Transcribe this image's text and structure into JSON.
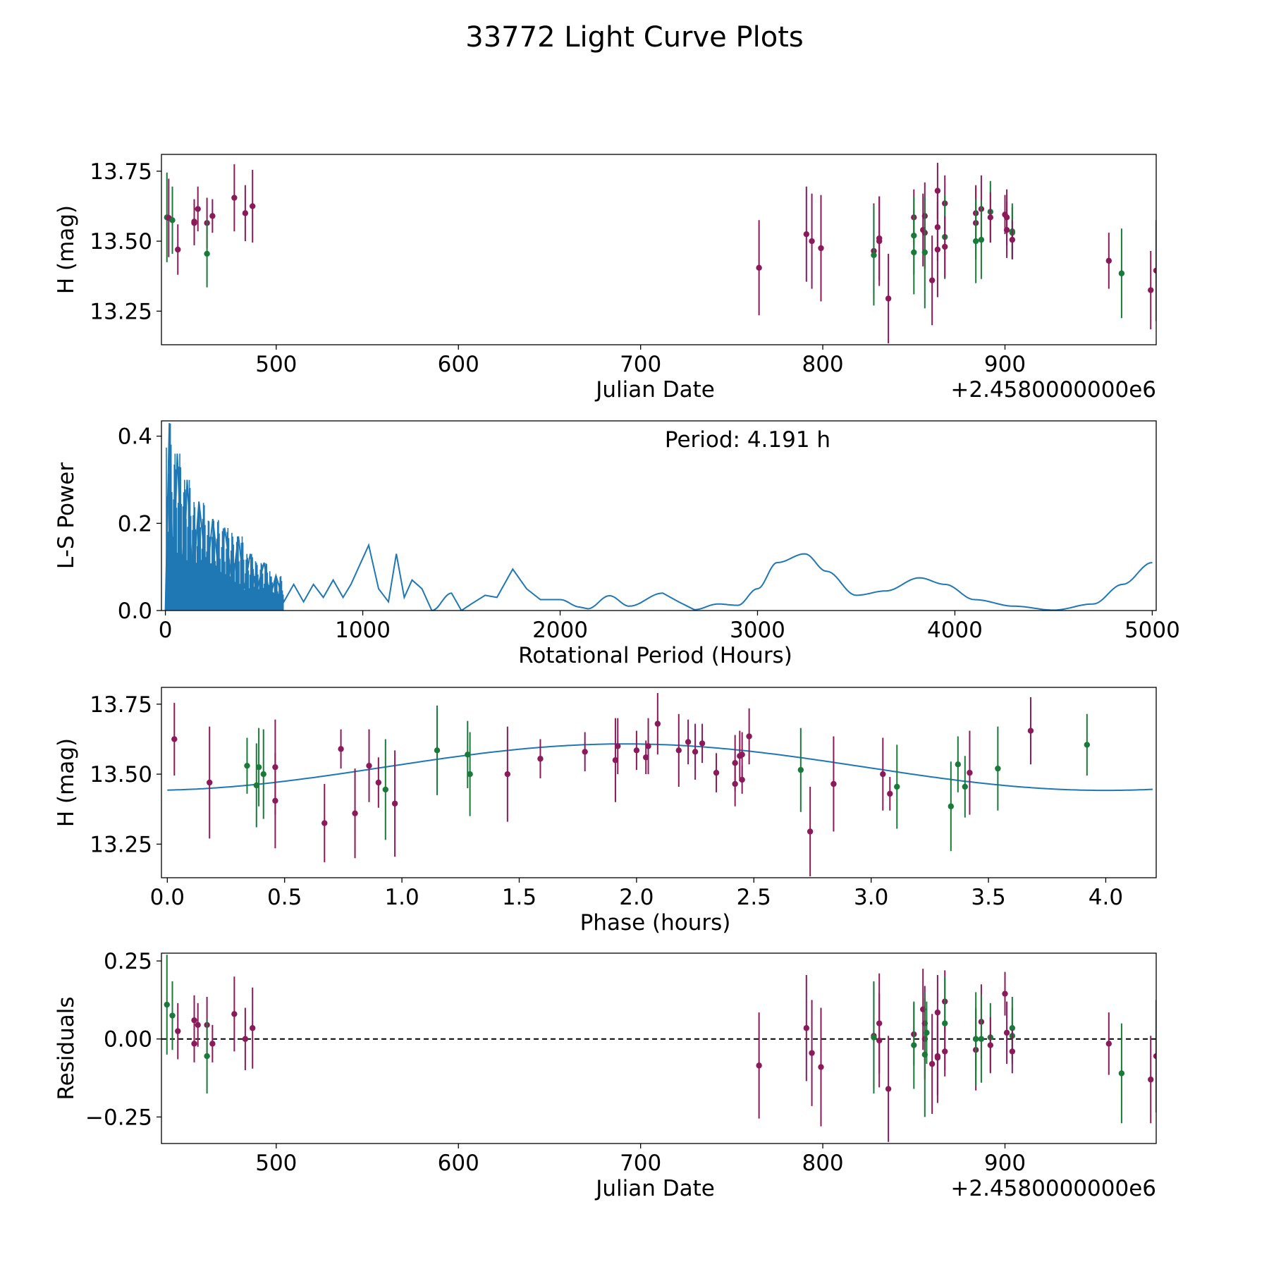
{
  "chart_data": {
    "title": "33772 Light Curve Plots",
    "colors": {
      "purple": "#8b1a5a",
      "green": "#1a7a3a",
      "blue": "#1f77b4"
    },
    "panels": [
      {
        "id": "lightcurve",
        "type": "scatter",
        "xlabel": "Julian Date",
        "ylabel": "H (mag)",
        "offset_label": "+2.4580000000e6",
        "xlim": [
          437,
          983
        ],
        "ylim": [
          13.13,
          13.81
        ],
        "xticks": [
          500,
          600,
          700,
          800,
          900
        ],
        "xtick_labels": [
          "500",
          "600",
          "700",
          "800",
          "900"
        ],
        "yticks": [
          13.25,
          13.5,
          13.75
        ],
        "ytick_labels": [
          "13.25",
          "13.50",
          "13.75"
        ]
      },
      {
        "id": "periodogram",
        "type": "line",
        "xlabel": "Rotational Period (Hours)",
        "ylabel": "L-S Power",
        "annotation": "Period: 4.191 h",
        "xlim": [
          -20,
          5020
        ],
        "ylim": [
          0,
          0.435
        ],
        "xticks": [
          0,
          1000,
          2000,
          3000,
          4000,
          5000
        ],
        "xtick_labels": [
          "0",
          "1000",
          "2000",
          "3000",
          "4000",
          "5000"
        ],
        "yticks": [
          0.0,
          0.2,
          0.4
        ],
        "ytick_labels": [
          "0.0",
          "0.2",
          "0.4"
        ],
        "peaks": [
          [
            0,
            0.0
          ],
          [
            20,
            0.43
          ],
          [
            40,
            0.05
          ],
          [
            60,
            0.36
          ],
          [
            90,
            0.04
          ],
          [
            110,
            0.3
          ],
          [
            140,
            0.06
          ],
          [
            170,
            0.25
          ],
          [
            210,
            0.08
          ],
          [
            240,
            0.21
          ],
          [
            280,
            0.05
          ],
          [
            300,
            0.19
          ],
          [
            340,
            0.06
          ],
          [
            370,
            0.17
          ],
          [
            400,
            0.05
          ],
          [
            430,
            0.13
          ],
          [
            460,
            0.04
          ],
          [
            500,
            0.11
          ],
          [
            530,
            0.03
          ],
          [
            560,
            0.08
          ],
          [
            600,
            0.02
          ],
          [
            650,
            0.06
          ],
          [
            700,
            0.02
          ],
          [
            750,
            0.06
          ],
          [
            800,
            0.03
          ],
          [
            850,
            0.07
          ],
          [
            900,
            0.03
          ],
          [
            940,
            0.06
          ],
          [
            1000,
            0.12
          ],
          [
            1030,
            0.15
          ],
          [
            1080,
            0.05
          ],
          [
            1130,
            0.02
          ],
          [
            1170,
            0.13
          ],
          [
            1210,
            0.03
          ],
          [
            1250,
            0.07
          ],
          [
            1300,
            0.05
          ],
          [
            1350,
            0.0
          ],
          [
            1450,
            0.04
          ],
          [
            1500,
            0.0
          ],
          [
            1550,
            0.015
          ],
          [
            1620,
            0.035
          ],
          [
            1680,
            0.03
          ],
          [
            1760,
            0.095
          ],
          [
            1830,
            0.05
          ],
          [
            1900,
            0.025
          ],
          [
            2000,
            0.025
          ],
          [
            2100,
            0.008
          ],
          [
            2140,
            0.004
          ],
          [
            2250,
            0.034
          ],
          [
            2350,
            0.01
          ],
          [
            2520,
            0.04
          ],
          [
            2600,
            0.02
          ],
          [
            2680,
            0.002
          ],
          [
            2800,
            0.015
          ],
          [
            2900,
            0.012
          ],
          [
            3000,
            0.05
          ],
          [
            3100,
            0.11
          ],
          [
            3240,
            0.13
          ],
          [
            3350,
            0.09
          ],
          [
            3500,
            0.035
          ],
          [
            3650,
            0.045
          ],
          [
            3820,
            0.075
          ],
          [
            3950,
            0.06
          ],
          [
            4100,
            0.025
          ],
          [
            4300,
            0.01
          ],
          [
            4500,
            0.001
          ],
          [
            4700,
            0.015
          ],
          [
            4850,
            0.06
          ],
          [
            5000,
            0.11
          ]
        ]
      },
      {
        "id": "phased",
        "type": "scatter",
        "xlabel": "Phase (hours)",
        "ylabel": "H (mag)",
        "xlim": [
          -0.025,
          4.215
        ],
        "ylim": [
          13.13,
          13.81
        ],
        "xticks": [
          0.0,
          0.5,
          1.0,
          1.5,
          2.0,
          2.5,
          3.0,
          3.5,
          4.0
        ],
        "xtick_labels": [
          "0.0",
          "0.5",
          "1.0",
          "1.5",
          "2.0",
          "2.5",
          "3.0",
          "3.5",
          "4.0"
        ],
        "yticks": [
          13.25,
          13.5,
          13.75
        ],
        "ytick_labels": [
          "13.25",
          "13.50",
          "13.75"
        ],
        "fit": {
          "mean": 13.525,
          "amplitude": 0.083,
          "peak_phase": 1.95,
          "half_period": 2.05
        }
      },
      {
        "id": "residuals",
        "type": "scatter",
        "xlabel": "Julian Date",
        "ylabel": "Residuals",
        "offset_label": "+2.4580000000e6",
        "xlim": [
          437,
          983
        ],
        "ylim": [
          -0.335,
          0.275
        ],
        "xticks": [
          500,
          600,
          700,
          800,
          900
        ],
        "xtick_labels": [
          "500",
          "600",
          "700",
          "800",
          "900"
        ],
        "yticks": [
          0.25,
          0.0,
          -0.25
        ],
        "ytick_labels": [
          "0.25",
          "0.00",
          "−0.25"
        ]
      }
    ],
    "lightcurve_points": [
      [
        440,
        13.585,
        0.16,
        "g"
      ],
      [
        441,
        13.583,
        0.14,
        "p"
      ],
      [
        443,
        13.575,
        0.12,
        "g"
      ],
      [
        446,
        13.47,
        0.09,
        "p"
      ],
      [
        455,
        13.565,
        0.08,
        "p"
      ],
      [
        455,
        13.57,
        0.08,
        "p"
      ],
      [
        457,
        13.615,
        0.08,
        "p"
      ],
      [
        462,
        13.565,
        0.09,
        "p"
      ],
      [
        462,
        13.455,
        0.12,
        "g"
      ],
      [
        465,
        13.59,
        0.06,
        "p"
      ],
      [
        477,
        13.655,
        0.12,
        "p"
      ],
      [
        483,
        13.6,
        0.1,
        "p"
      ],
      [
        487,
        13.625,
        0.13,
        "p"
      ],
      [
        765,
        13.405,
        0.17,
        "p"
      ],
      [
        791,
        13.525,
        0.17,
        "p"
      ],
      [
        794,
        13.5,
        0.17,
        "p"
      ],
      [
        799,
        13.475,
        0.19,
        "p"
      ],
      [
        828,
        13.465,
        0.17,
        "p"
      ],
      [
        828,
        13.45,
        0.18,
        "g"
      ],
      [
        831,
        13.5,
        0.16,
        "p"
      ],
      [
        831,
        13.51,
        0.15,
        "p"
      ],
      [
        836,
        13.295,
        0.16,
        "p"
      ],
      [
        850,
        13.585,
        0.1,
        "p"
      ],
      [
        850,
        13.52,
        0.14,
        "g"
      ],
      [
        850,
        13.46,
        0.15,
        "g"
      ],
      [
        855,
        13.54,
        0.13,
        "p"
      ],
      [
        856,
        13.59,
        0.12,
        "p"
      ],
      [
        856,
        13.53,
        0.13,
        "p"
      ],
      [
        856,
        13.46,
        0.2,
        "g"
      ],
      [
        860,
        13.36,
        0.16,
        "p"
      ],
      [
        863,
        13.68,
        0.1,
        "p"
      ],
      [
        863,
        13.55,
        0.12,
        "p"
      ],
      [
        863,
        13.47,
        0.17,
        "p"
      ],
      [
        867,
        13.635,
        0.1,
        "p"
      ],
      [
        867,
        13.515,
        0.15,
        "g"
      ],
      [
        867,
        13.48,
        0.11,
        "p"
      ],
      [
        884,
        13.6,
        0.1,
        "p"
      ],
      [
        884,
        13.565,
        0.13,
        "p"
      ],
      [
        884,
        13.5,
        0.15,
        "g"
      ],
      [
        887,
        13.615,
        0.12,
        "p"
      ],
      [
        887,
        13.505,
        0.14,
        "g"
      ],
      [
        892,
        13.605,
        0.11,
        "g"
      ],
      [
        892,
        13.585,
        0.09,
        "p"
      ],
      [
        900,
        13.595,
        0.07,
        "p"
      ],
      [
        901,
        13.585,
        0.1,
        "p"
      ],
      [
        901,
        13.54,
        0.1,
        "p"
      ],
      [
        904,
        13.535,
        0.1,
        "g"
      ],
      [
        904,
        13.53,
        0.09,
        "g"
      ],
      [
        904,
        13.505,
        0.07,
        "p"
      ],
      [
        957,
        13.43,
        0.1,
        "p"
      ],
      [
        964,
        13.385,
        0.16,
        "g"
      ],
      [
        980,
        13.325,
        0.14,
        "p"
      ],
      [
        983,
        13.395,
        0.18,
        "p"
      ]
    ],
    "phased_points": [
      [
        0.03,
        13.625,
        0.13,
        "p"
      ],
      [
        0.18,
        13.47,
        0.2,
        "p"
      ],
      [
        0.34,
        13.53,
        0.1,
        "g"
      ],
      [
        0.38,
        13.46,
        0.15,
        "g"
      ],
      [
        0.39,
        13.525,
        0.14,
        "g"
      ],
      [
        0.41,
        13.5,
        0.16,
        "g"
      ],
      [
        0.46,
        13.525,
        0.17,
        "p"
      ],
      [
        0.46,
        13.405,
        0.17,
        "p"
      ],
      [
        0.67,
        13.325,
        0.14,
        "p"
      ],
      [
        0.74,
        13.59,
        0.07,
        "p"
      ],
      [
        0.8,
        13.36,
        0.16,
        "p"
      ],
      [
        0.86,
        13.53,
        0.13,
        "p"
      ],
      [
        0.9,
        13.47,
        0.09,
        "p"
      ],
      [
        0.93,
        13.445,
        0.18,
        "g"
      ],
      [
        0.97,
        13.395,
        0.19,
        "p"
      ],
      [
        1.15,
        13.585,
        0.16,
        "g"
      ],
      [
        1.28,
        13.57,
        0.12,
        "g"
      ],
      [
        1.29,
        13.5,
        0.15,
        "g"
      ],
      [
        1.45,
        13.5,
        0.17,
        "p"
      ],
      [
        1.59,
        13.555,
        0.07,
        "p"
      ],
      [
        1.78,
        13.58,
        0.07,
        "p"
      ],
      [
        1.91,
        13.55,
        0.15,
        "p"
      ],
      [
        1.92,
        13.6,
        0.1,
        "p"
      ],
      [
        2.0,
        13.585,
        0.07,
        "p"
      ],
      [
        2.04,
        13.56,
        0.06,
        "p"
      ],
      [
        2.05,
        13.6,
        0.1,
        "p"
      ],
      [
        2.09,
        13.68,
        0.11,
        "p"
      ],
      [
        2.18,
        13.585,
        0.13,
        "p"
      ],
      [
        2.22,
        13.615,
        0.08,
        "p"
      ],
      [
        2.25,
        13.58,
        0.1,
        "p"
      ],
      [
        2.28,
        13.61,
        0.07,
        "p"
      ],
      [
        2.34,
        13.505,
        0.07,
        "p"
      ],
      [
        2.42,
        13.465,
        0.08,
        "p"
      ],
      [
        2.42,
        13.54,
        0.1,
        "p"
      ],
      [
        2.44,
        13.565,
        0.09,
        "p"
      ],
      [
        2.45,
        13.57,
        0.08,
        "p"
      ],
      [
        2.45,
        13.48,
        0.05,
        "p"
      ],
      [
        2.48,
        13.635,
        0.1,
        "p"
      ],
      [
        2.7,
        13.515,
        0.15,
        "g"
      ],
      [
        2.74,
        13.295,
        0.16,
        "p"
      ],
      [
        2.84,
        13.465,
        0.17,
        "p"
      ],
      [
        3.05,
        13.5,
        0.13,
        "p"
      ],
      [
        3.08,
        13.43,
        0.06,
        "p"
      ],
      [
        3.11,
        13.455,
        0.15,
        "g"
      ],
      [
        3.34,
        13.385,
        0.16,
        "g"
      ],
      [
        3.37,
        13.535,
        0.1,
        "g"
      ],
      [
        3.4,
        13.455,
        0.11,
        "g"
      ],
      [
        3.42,
        13.505,
        0.15,
        "p"
      ],
      [
        3.54,
        13.52,
        0.15,
        "g"
      ],
      [
        3.68,
        13.655,
        0.12,
        "p"
      ],
      [
        3.92,
        13.605,
        0.11,
        "g"
      ]
    ],
    "residual_points": [
      [
        440,
        0.11,
        0.16,
        "g"
      ],
      [
        443,
        0.075,
        0.11,
        "g"
      ],
      [
        446,
        0.025,
        0.09,
        "p"
      ],
      [
        455,
        0.06,
        0.08,
        "p"
      ],
      [
        455,
        -0.015,
        0.06,
        "p"
      ],
      [
        457,
        0.045,
        0.07,
        "p"
      ],
      [
        462,
        0.045,
        0.09,
        "p"
      ],
      [
        462,
        -0.055,
        0.12,
        "g"
      ],
      [
        465,
        -0.015,
        0.06,
        "p"
      ],
      [
        477,
        0.08,
        0.12,
        "p"
      ],
      [
        483,
        0.0,
        0.1,
        "p"
      ],
      [
        487,
        0.035,
        0.13,
        "p"
      ],
      [
        765,
        -0.085,
        0.17,
        "p"
      ],
      [
        791,
        0.035,
        0.17,
        "p"
      ],
      [
        794,
        -0.045,
        0.17,
        "p"
      ],
      [
        799,
        -0.09,
        0.19,
        "p"
      ],
      [
        828,
        0.01,
        0.17,
        "p"
      ],
      [
        828,
        0.005,
        0.18,
        "g"
      ],
      [
        831,
        0.05,
        0.16,
        "p"
      ],
      [
        831,
        -0.005,
        0.15,
        "p"
      ],
      [
        836,
        -0.16,
        0.17,
        "p"
      ],
      [
        850,
        0.015,
        0.1,
        "p"
      ],
      [
        850,
        -0.02,
        0.14,
        "g"
      ],
      [
        855,
        0.095,
        0.13,
        "p"
      ],
      [
        856,
        0.05,
        0.12,
        "p"
      ],
      [
        856,
        0.0,
        0.13,
        "p"
      ],
      [
        856,
        -0.05,
        0.2,
        "g"
      ],
      [
        857,
        0.02,
        0.1,
        "g"
      ],
      [
        860,
        -0.08,
        0.16,
        "p"
      ],
      [
        863,
        0.085,
        0.12,
        "p"
      ],
      [
        863,
        -0.055,
        0.15,
        "p"
      ],
      [
        863,
        -0.06,
        0.12,
        "p"
      ],
      [
        867,
        0.12,
        0.1,
        "p"
      ],
      [
        867,
        0.05,
        0.15,
        "g"
      ],
      [
        867,
        -0.04,
        0.08,
        "p"
      ],
      [
        884,
        0.0,
        0.1,
        "p"
      ],
      [
        884,
        -0.035,
        0.13,
        "p"
      ],
      [
        884,
        0.0,
        0.15,
        "g"
      ],
      [
        887,
        0.055,
        0.12,
        "p"
      ],
      [
        887,
        0.0,
        0.14,
        "g"
      ],
      [
        892,
        0.005,
        0.11,
        "g"
      ],
      [
        892,
        -0.02,
        0.09,
        "p"
      ],
      [
        900,
        0.145,
        0.07,
        "p"
      ],
      [
        901,
        0.02,
        0.1,
        "p"
      ],
      [
        904,
        0.035,
        0.1,
        "g"
      ],
      [
        904,
        0.01,
        0.09,
        "g"
      ],
      [
        904,
        -0.04,
        0.07,
        "p"
      ],
      [
        957,
        -0.015,
        0.1,
        "p"
      ],
      [
        964,
        -0.11,
        0.16,
        "g"
      ],
      [
        980,
        -0.13,
        0.14,
        "p"
      ],
      [
        983,
        -0.055,
        0.18,
        "p"
      ]
    ]
  }
}
